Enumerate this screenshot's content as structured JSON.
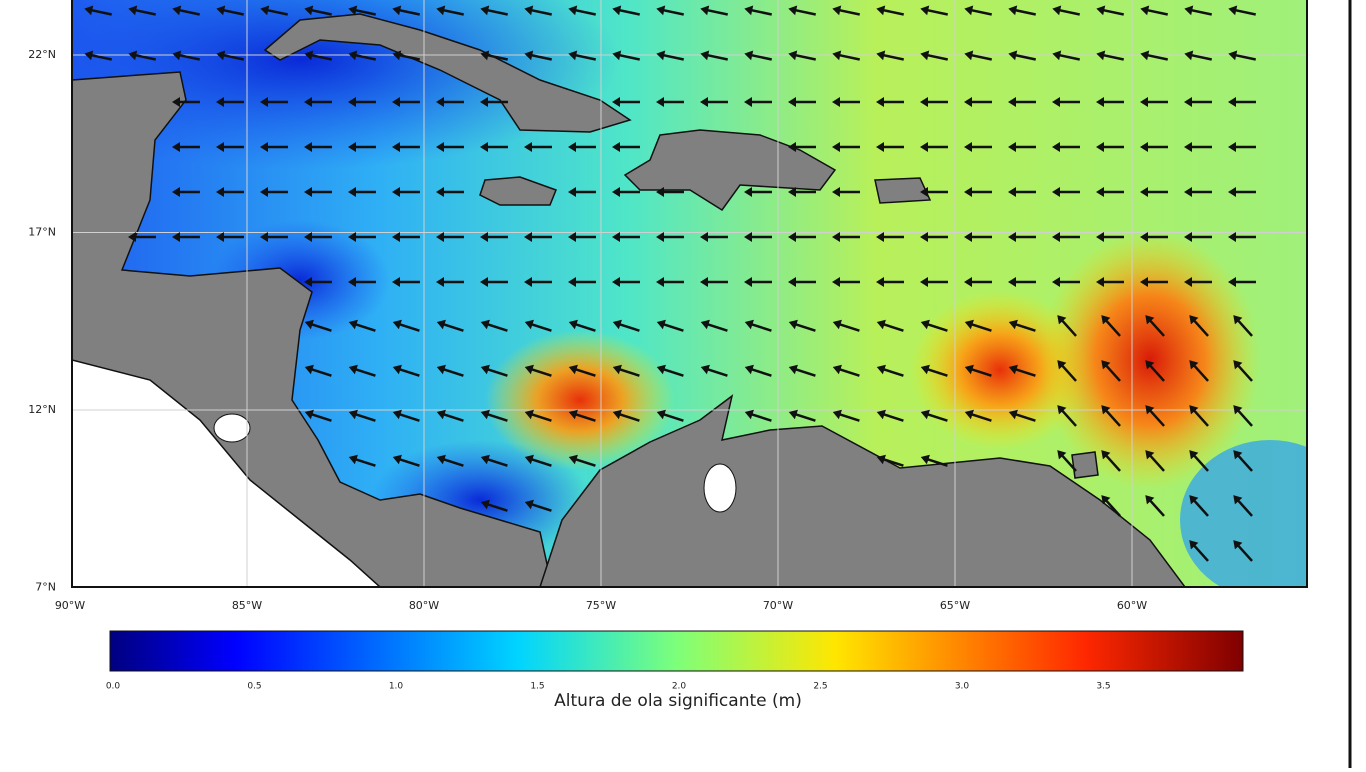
{
  "map": {
    "lat_labels": [
      "22°N",
      "17°N",
      "12°N",
      "7°N"
    ],
    "lon_labels": [
      "90°W",
      "85°W",
      "80°W",
      "75°W",
      "70°W",
      "65°W",
      "60°W"
    ],
    "colorbar": {
      "ticks": [
        "0.0",
        "0.5",
        "1.0",
        "1.5",
        "2.0",
        "2.5",
        "3.0",
        "3.5"
      ],
      "label": "Altura de ola significante (m)"
    }
  }
}
